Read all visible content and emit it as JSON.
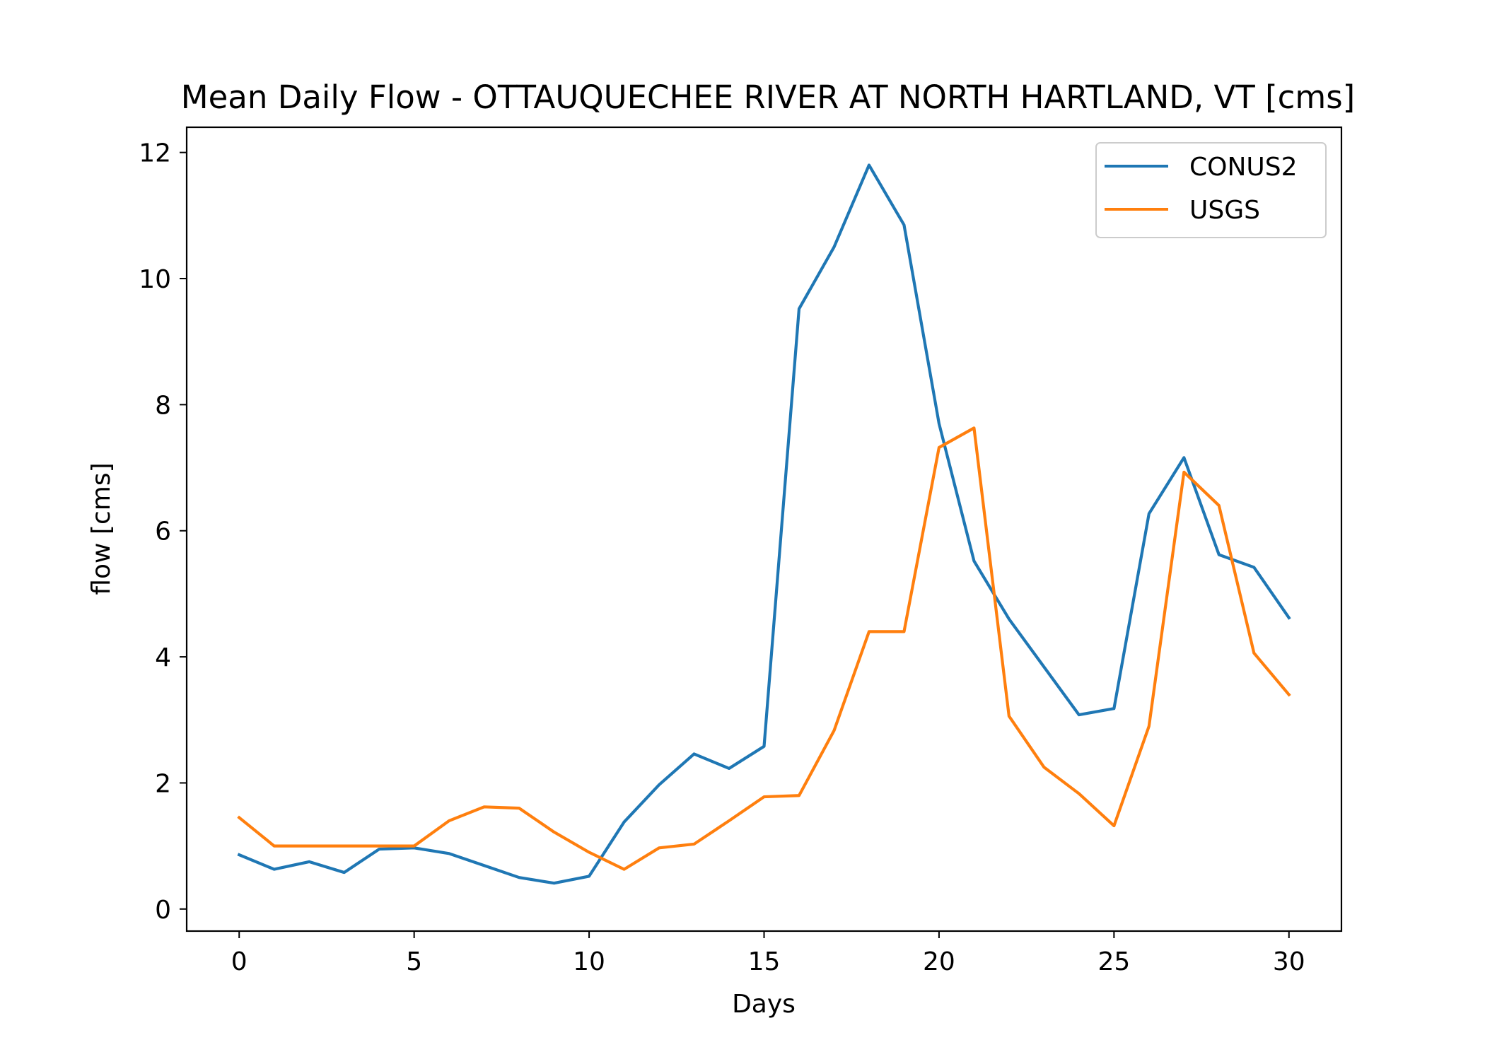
{
  "chart_data": {
    "type": "line",
    "title": "Mean Daily Flow - OTTAUQUECHEE RIVER AT NORTH HARTLAND, VT [cms]",
    "xlabel": "Days",
    "ylabel": "flow [cms]",
    "xlim": [
      -1.5,
      31.5
    ],
    "ylim": [
      -0.35,
      12.4
    ],
    "xticks": [
      0,
      5,
      10,
      15,
      20,
      25,
      30
    ],
    "yticks": [
      0,
      2,
      4,
      6,
      8,
      10,
      12
    ],
    "grid": false,
    "legend_position": "upper right",
    "x": [
      0,
      1,
      2,
      3,
      4,
      5,
      6,
      7,
      8,
      9,
      10,
      11,
      12,
      13,
      14,
      15,
      16,
      17,
      18,
      19,
      20,
      21,
      22,
      23,
      24,
      25,
      26,
      27,
      28,
      29,
      30
    ],
    "series": [
      {
        "name": "CONUS2",
        "color": "#1f77b4",
        "values": [
          0.86,
          0.63,
          0.75,
          0.58,
          0.95,
          0.97,
          0.88,
          0.69,
          0.5,
          0.41,
          0.52,
          1.38,
          1.97,
          2.46,
          2.23,
          2.58,
          9.52,
          10.5,
          11.8,
          10.85,
          7.7,
          5.52,
          4.6,
          3.84,
          3.08,
          3.18,
          6.27,
          7.16,
          5.62,
          5.42,
          4.62
        ]
      },
      {
        "name": "USGS",
        "color": "#ff7f0e",
        "values": [
          1.45,
          1.0,
          1.0,
          1.0,
          1.0,
          1.0,
          1.4,
          1.62,
          1.6,
          1.22,
          0.9,
          0.63,
          0.97,
          1.03,
          1.4,
          1.78,
          1.8,
          2.83,
          4.4,
          4.4,
          7.32,
          7.63,
          3.06,
          2.25,
          1.83,
          1.32,
          2.9,
          6.93,
          6.4,
          4.06,
          3.4
        ]
      }
    ]
  }
}
